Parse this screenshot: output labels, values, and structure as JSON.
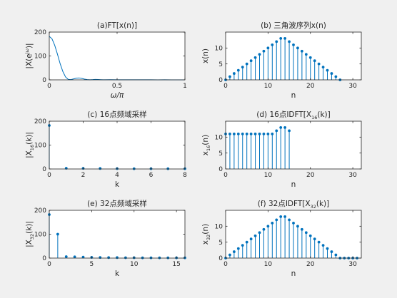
{
  "figure": {
    "background": "#f0f0f0",
    "axes_color": "#262626",
    "series_color": "#0072bd"
  },
  "chart_data": [
    {
      "id": "a",
      "type": "line",
      "title": "(a)FT[x(n)]",
      "ylabel": "|X(e^{jω})|",
      "xlabel": "ω/π",
      "xlim": [
        0,
        1
      ],
      "ylim": [
        0,
        200
      ],
      "xticks": [
        0,
        0.5,
        1
      ],
      "xticklabels": [
        "0",
        "0.5",
        "1"
      ],
      "yticks": [
        0,
        100,
        200
      ],
      "yticklabels": [
        "0",
        "100",
        "200"
      ],
      "x": [
        0,
        0.02,
        0.04,
        0.06,
        0.08,
        0.1,
        0.12,
        0.14,
        0.16,
        0.18,
        0.2,
        0.22,
        0.24,
        0.26,
        0.28,
        0.3,
        0.32,
        0.34,
        0.36,
        0.38,
        0.4,
        0.45,
        0.5,
        0.55,
        0.6,
        0.65,
        0.7,
        0.75,
        0.8,
        0.85,
        0.9,
        0.95,
        1.0
      ],
      "y": [
        182,
        172,
        145,
        108,
        68,
        35,
        12,
        2,
        1,
        4,
        7,
        8,
        6,
        3,
        1,
        0.5,
        1,
        1.8,
        1.5,
        0.8,
        0.3,
        0.6,
        0.3,
        0.4,
        0.2,
        0.3,
        0.2,
        0.2,
        0.1,
        0.2,
        0.1,
        0.1,
        0.1
      ]
    },
    {
      "id": "b",
      "type": "stem",
      "title": "(b) 三角波序列x(n)",
      "ylabel": "x(n)",
      "xlabel": "n",
      "xlim": [
        0,
        32
      ],
      "ylim": [
        0,
        15
      ],
      "xticks": [
        0,
        10,
        20,
        30
      ],
      "xticklabels": [
        "0",
        "10",
        "20",
        "30"
      ],
      "yticks": [
        0,
        5,
        10
      ],
      "yticklabels": [
        "0",
        "5",
        "10"
      ],
      "x": [
        0,
        1,
        2,
        3,
        4,
        5,
        6,
        7,
        8,
        9,
        10,
        11,
        12,
        13,
        14,
        15,
        16,
        17,
        18,
        19,
        20,
        21,
        22,
        23,
        24,
        25,
        26,
        27
      ],
      "y": [
        0,
        1,
        2,
        3,
        4,
        5,
        6,
        7,
        8,
        9,
        10,
        11,
        12,
        13,
        13,
        12,
        11,
        10,
        9,
        8,
        7,
        6,
        5,
        4,
        3,
        2,
        1,
        0
      ]
    },
    {
      "id": "c",
      "type": "stem",
      "title": "(c) 16点频域采样",
      "ylabel": "|X_{16}(k)|",
      "xlabel": "k",
      "xlim": [
        0,
        8
      ],
      "ylim": [
        0,
        200
      ],
      "xticks": [
        0,
        2,
        4,
        6,
        8
      ],
      "xticklabels": [
        "0",
        "2",
        "4",
        "6",
        "8"
      ],
      "yticks": [
        0,
        100,
        200
      ],
      "yticklabels": [
        "0",
        "100",
        "200"
      ],
      "x": [
        0,
        1,
        2,
        3,
        4,
        5,
        6,
        7,
        8
      ],
      "y": [
        182,
        3,
        2.5,
        2,
        1.5,
        1,
        1,
        1,
        1
      ]
    },
    {
      "id": "d",
      "type": "stem",
      "title": "(d) 16点IDFT[X_{16}(k)]",
      "ylabel": "x_{16}(n)",
      "xlabel": "n",
      "xlim": [
        0,
        32
      ],
      "ylim": [
        0,
        15
      ],
      "xticks": [
        0,
        10,
        20,
        30
      ],
      "xticklabels": [
        "0",
        "10",
        "20",
        "30"
      ],
      "yticks": [
        0,
        5,
        10
      ],
      "yticklabels": [
        "0",
        "5",
        "10"
      ],
      "x": [
        0,
        1,
        2,
        3,
        4,
        5,
        6,
        7,
        8,
        9,
        10,
        11,
        12,
        13,
        14,
        15
      ],
      "y": [
        11,
        11,
        11,
        11,
        11,
        11,
        11,
        11,
        11,
        11,
        11,
        11,
        12,
        13,
        13,
        12
      ]
    },
    {
      "id": "e",
      "type": "stem",
      "title": "(e) 32点频域采样",
      "ylabel": "|X_{32}(k)|",
      "xlabel": "k",
      "xlim": [
        0,
        16
      ],
      "ylim": [
        0,
        200
      ],
      "xticks": [
        0,
        5,
        10,
        15
      ],
      "xticklabels": [
        "0",
        "5",
        "10",
        "15"
      ],
      "yticks": [
        0,
        100,
        200
      ],
      "yticklabels": [
        "0",
        "100",
        "200"
      ],
      "x": [
        0,
        1,
        2,
        3,
        4,
        5,
        6,
        7,
        8,
        9,
        10,
        11,
        12,
        13,
        14,
        15,
        16
      ],
      "y": [
        182,
        100,
        6,
        5,
        4,
        3,
        2.5,
        2,
        2,
        1.5,
        1.5,
        1,
        1,
        1,
        1,
        1,
        1
      ]
    },
    {
      "id": "f",
      "type": "stem",
      "title": "(f) 32点IDFT[X_{32}(k)]",
      "ylabel": "x_{32}(n)",
      "xlabel": "n",
      "xlim": [
        0,
        32
      ],
      "ylim": [
        0,
        15
      ],
      "xticks": [
        0,
        10,
        20,
        30
      ],
      "xticklabels": [
        "0",
        "10",
        "20",
        "30"
      ],
      "yticks": [
        0,
        5,
        10
      ],
      "yticklabels": [
        "0",
        "5",
        "10"
      ],
      "x": [
        0,
        1,
        2,
        3,
        4,
        5,
        6,
        7,
        8,
        9,
        10,
        11,
        12,
        13,
        14,
        15,
        16,
        17,
        18,
        19,
        20,
        21,
        22,
        23,
        24,
        25,
        26,
        27,
        28,
        29,
        30,
        31
      ],
      "y": [
        0,
        1,
        2,
        3,
        4,
        5,
        6,
        7,
        8,
        9,
        10,
        11,
        12,
        13,
        13,
        12,
        11,
        10,
        9,
        8,
        7,
        6,
        5,
        4,
        3,
        2,
        1,
        0,
        0,
        0,
        0,
        0
      ]
    }
  ]
}
